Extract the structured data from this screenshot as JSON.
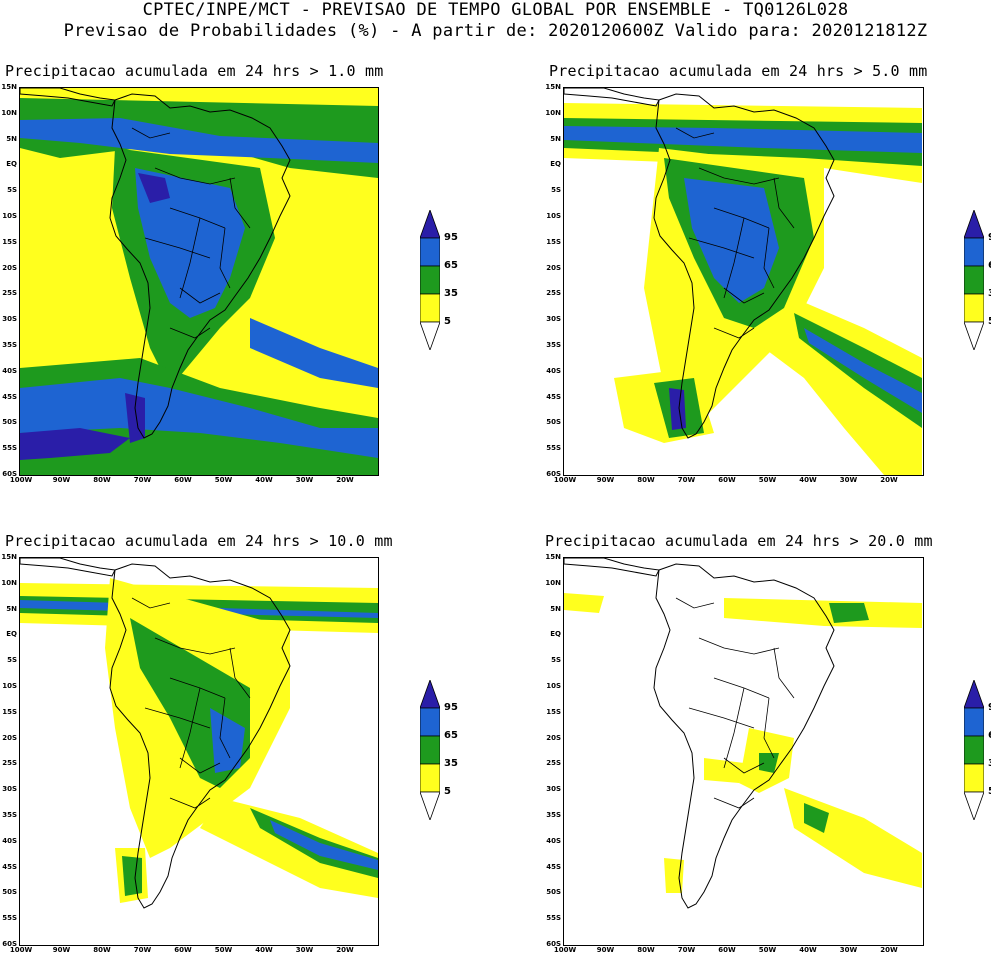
{
  "header": {
    "line1": "CPTEC/INPE/MCT - PREVISAO DE TEMPO GLOBAL POR ENSEMBLE - TQ0126L028",
    "line2": "Previsao de Probabilidades (%) -  A partir de: 2020120600Z  Valido para: 2020121812Z"
  },
  "lat_labels": [
    "15N",
    "10N",
    "5N",
    "EQ",
    "5S",
    "10S",
    "15S",
    "20S",
    "25S",
    "30S",
    "35S",
    "40S",
    "45S",
    "50S",
    "55S",
    "60S"
  ],
  "lon_labels": [
    "100W",
    "90W",
    "80W",
    "70W",
    "60W",
    "50W",
    "40W",
    "30W",
    "20W"
  ],
  "legend": {
    "levels": [
      "95",
      "65",
      "35",
      "5"
    ],
    "colors": {
      "c95": "#2a1ea8",
      "c65": "#1e64d2",
      "c35": "#1e9a1e",
      "c5": "#ffff1e"
    }
  },
  "panels": [
    {
      "title": "Precipitacao acumulada em 24 hrs > 1.0 mm"
    },
    {
      "title": "Precipitacao acumulada em 24 hrs > 5.0 mm"
    },
    {
      "title": "Precipitacao acumulada em 24 hrs > 10.0 mm"
    },
    {
      "title": "Precipitacao acumulada em 24 hrs > 20.0 mm"
    }
  ]
}
